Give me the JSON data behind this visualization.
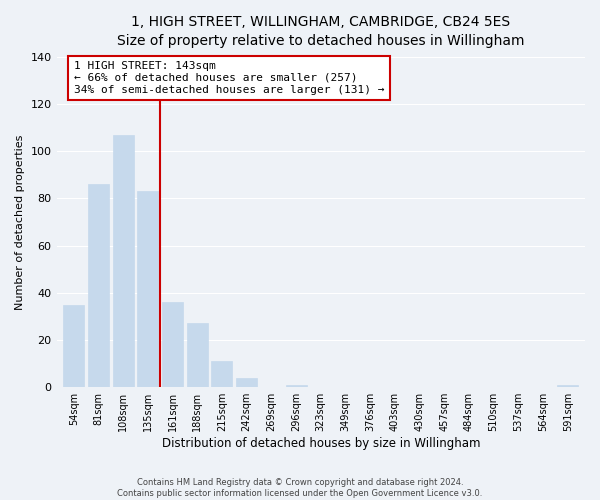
{
  "title": "1, HIGH STREET, WILLINGHAM, CAMBRIDGE, CB24 5ES",
  "subtitle": "Size of property relative to detached houses in Willingham",
  "xlabel": "Distribution of detached houses by size in Willingham",
  "ylabel": "Number of detached properties",
  "bar_labels": [
    "54sqm",
    "81sqm",
    "108sqm",
    "135sqm",
    "161sqm",
    "188sqm",
    "215sqm",
    "242sqm",
    "269sqm",
    "296sqm",
    "323sqm",
    "349sqm",
    "376sqm",
    "403sqm",
    "430sqm",
    "457sqm",
    "484sqm",
    "510sqm",
    "537sqm",
    "564sqm",
    "591sqm"
  ],
  "bar_values": [
    35,
    86,
    107,
    83,
    36,
    27,
    11,
    4,
    0,
    1,
    0,
    0,
    0,
    0,
    0,
    0,
    0,
    0,
    0,
    0,
    1
  ],
  "bar_color": "#c6d9ec",
  "vline_x": 3.5,
  "vline_color": "#cc0000",
  "annotation_line1": "1 HIGH STREET: 143sqm",
  "annotation_line2": "← 66% of detached houses are smaller (257)",
  "annotation_line3": "34% of semi-detached houses are larger (131) →",
  "annotation_box_color": "#ffffff",
  "annotation_box_edge": "#cc0000",
  "ylim": [
    0,
    140
  ],
  "yticks": [
    0,
    20,
    40,
    60,
    80,
    100,
    120,
    140
  ],
  "footer1": "Contains HM Land Registry data © Crown copyright and database right 2024.",
  "footer2": "Contains public sector information licensed under the Open Government Licence v3.0.",
  "background_color": "#eef2f7",
  "grid_color": "#ffffff",
  "title_fontsize": 10,
  "subtitle_fontsize": 9,
  "ylabel_fontsize": 8,
  "xlabel_fontsize": 8.5,
  "tick_fontsize": 7,
  "annotation_fontsize": 8,
  "footer_fontsize": 6
}
